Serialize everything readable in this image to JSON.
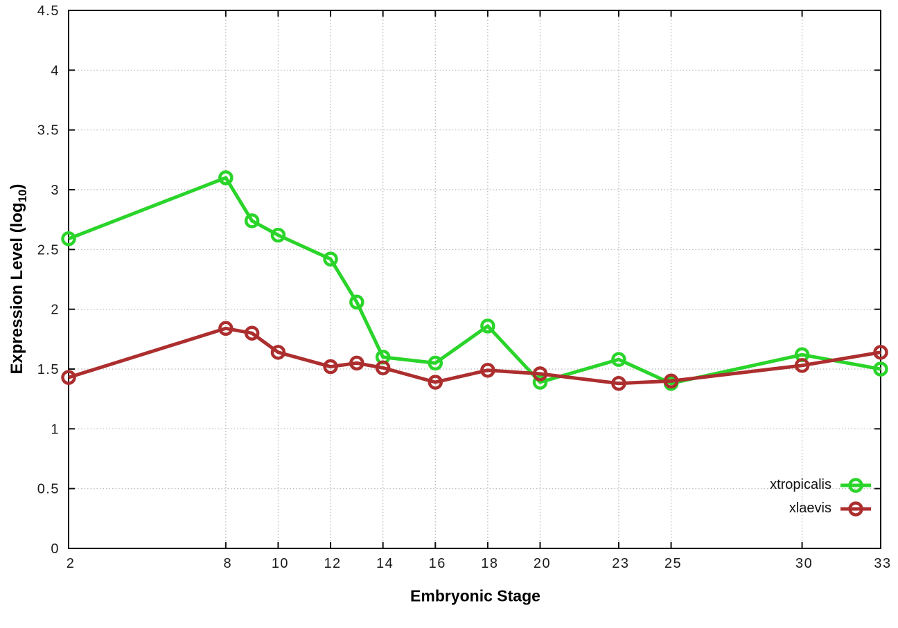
{
  "chart": {
    "xlabel": "Embryonic Stage",
    "ylabel": {
      "prefix": "Expression Level (log",
      "sub": "10",
      "suffix": ")"
    },
    "colors": {
      "background": "#ffffff",
      "axis": "#111111",
      "grid": "#b4b4b4"
    }
  },
  "chart_data": {
    "type": "line",
    "title": "",
    "xlabel": "Embryonic Stage",
    "ylabel": "Expression Level (log10)",
    "x": [
      2,
      8,
      9,
      10,
      12,
      13,
      14,
      16,
      18,
      20,
      23,
      25,
      30,
      33
    ],
    "series": [
      {
        "name": "xtropicalis",
        "color": "#2ad42a",
        "values": [
          2.59,
          3.1,
          2.74,
          2.62,
          2.42,
          2.06,
          1.6,
          1.55,
          1.86,
          1.39,
          1.58,
          1.38,
          1.62,
          1.5
        ]
      },
      {
        "name": "xlaevis",
        "color": "#ac2e2e",
        "values": [
          1.43,
          1.84,
          1.8,
          1.64,
          1.52,
          1.55,
          1.51,
          1.39,
          1.49,
          1.46,
          1.38,
          1.4,
          1.53,
          1.64
        ]
      }
    ],
    "xlim": [
      2,
      33
    ],
    "ylim": [
      0,
      4.5
    ],
    "xticks": [
      2,
      8,
      10,
      12,
      14,
      16,
      18,
      20,
      23,
      25,
      30,
      33
    ],
    "xtick_labels": [
      "2",
      "8",
      "10",
      "12",
      "14",
      "16",
      "18",
      "20",
      "23",
      "25",
      "30",
      "33"
    ],
    "yticks": [
      0,
      0.5,
      1,
      1.5,
      2,
      2.5,
      3,
      3.5,
      4,
      4.5
    ],
    "ytick_labels": [
      "0",
      "0.5",
      "1",
      "1.5",
      "2",
      "2.5",
      "3",
      "3.5",
      "4",
      "4.5"
    ],
    "grid": true,
    "legend_position": "inside-bottom-right",
    "marker": "open-circle"
  }
}
